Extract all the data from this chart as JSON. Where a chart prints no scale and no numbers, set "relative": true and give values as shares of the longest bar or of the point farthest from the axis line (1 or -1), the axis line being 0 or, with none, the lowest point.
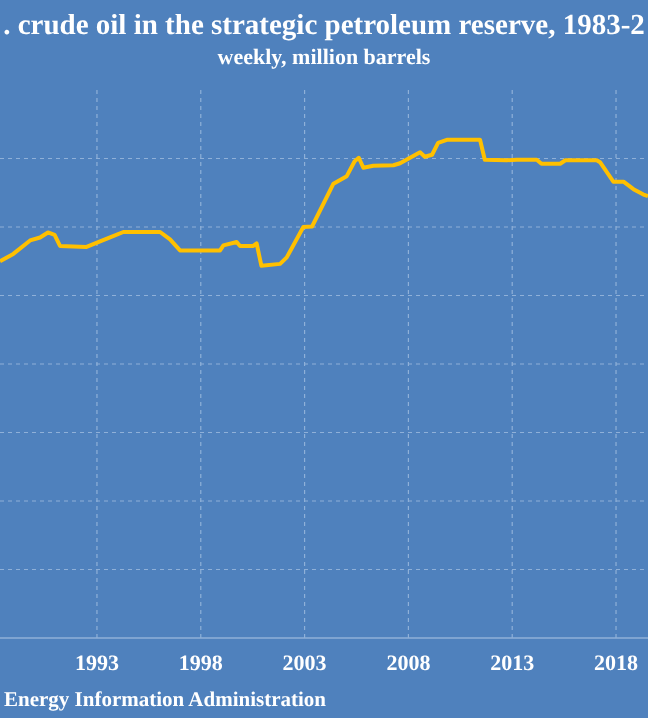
{
  "chart_data": {
    "type": "line",
    "relative": true,
    "title": ". crude oil in the strategic petroleum reserve, 1983-2",
    "subtitle": "weekly, million barrels",
    "annotations": [
      "Energy Information Administration"
    ],
    "x": [
      1988.33,
      1988.97,
      1989.78,
      1990.26,
      1990.64,
      1990.96,
      1991.22,
      1992.5,
      1993.15,
      1993.63,
      1994.27,
      1996.04,
      1996.52,
      1997.0,
      1998.93,
      1999.09,
      1999.73,
      1999.89,
      2000.53,
      2000.69,
      2000.92,
      2001.82,
      2002.14,
      2002.94,
      2003.36,
      2004.39,
      2005.03,
      2005.41,
      2005.61,
      2005.83,
      2006.31,
      2007.28,
      2007.6,
      2008.08,
      2008.56,
      2008.79,
      2009.14,
      2009.43,
      2009.85,
      2011.45,
      2011.68,
      2012.74,
      2013.22,
      2014.18,
      2014.41,
      2015.31,
      2015.56,
      2017.07,
      2017.23,
      2017.87,
      2018.36,
      2018.84,
      2019.32,
      2019.54
    ],
    "series": [
      {
        "color": "#ffc000",
        "values": [
          0.756,
          0.771,
          0.798,
          0.804,
          0.814,
          0.809,
          0.787,
          0.785,
          0.796,
          0.804,
          0.815,
          0.815,
          0.8,
          0.778,
          0.778,
          0.788,
          0.795,
          0.787,
          0.787,
          0.792,
          0.747,
          0.751,
          0.764,
          0.825,
          0.826,
          0.912,
          0.927,
          0.957,
          0.964,
          0.944,
          0.948,
          0.949,
          0.953,
          0.964,
          0.975,
          0.966,
          0.97,
          0.994,
          1,
          1,
          0.96,
          0.959,
          0.96,
          0.96,
          0.952,
          0.952,
          0.959,
          0.959,
          0.955,
          0.916,
          0.916,
          0.901,
          0.89,
          0.887
        ]
      }
    ],
    "xlim": [
      1988.33,
      2019.54
    ],
    "xticks": [
      1993,
      1998,
      2003,
      2008,
      2013,
      2018
    ],
    "grid": true,
    "line_style": "solid",
    "marker": "none"
  }
}
